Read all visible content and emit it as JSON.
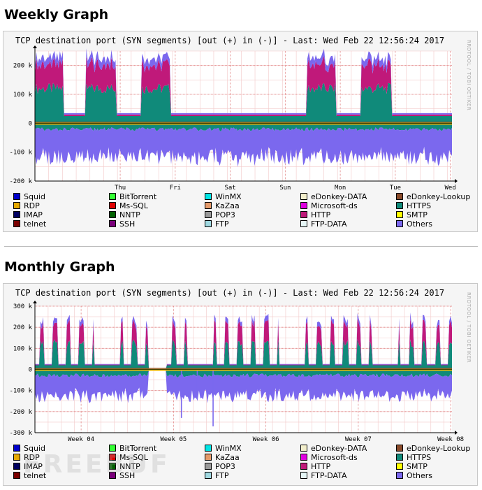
{
  "sections": [
    {
      "heading": "Weekly Graph"
    },
    {
      "heading": "Monthly Graph"
    }
  ],
  "watermark_text": "FREEBUF",
  "legend": [
    {
      "label": "Squid",
      "color": "#0000cc"
    },
    {
      "label": "BitTorrent",
      "color": "#33ff33"
    },
    {
      "label": "WinMX",
      "color": "#00e5e5"
    },
    {
      "label": "eDonkey-DATA",
      "color": "#f2eecb"
    },
    {
      "label": "eDonkey-Lookup",
      "color": "#8a4b2b"
    },
    {
      "label": "RDP",
      "color": "#e5a800"
    },
    {
      "label": "Ms-SQL",
      "color": "#e00000"
    },
    {
      "label": "KaZaa",
      "color": "#e59a6a"
    },
    {
      "label": "Microsoft-ds",
      "color": "#e000e0"
    },
    {
      "label": "HTTPS",
      "color": "#108a7a"
    },
    {
      "label": "IMAP",
      "color": "#000060"
    },
    {
      "label": "NNTP",
      "color": "#006000"
    },
    {
      "label": "POP3",
      "color": "#9a9a9a"
    },
    {
      "label": "HTTP",
      "color": "#c0197a"
    },
    {
      "label": "SMTP",
      "color": "#ffff00"
    },
    {
      "label": "telnet",
      "color": "#7a0000"
    },
    {
      "label": "SSH",
      "color": "#7a007a"
    },
    {
      "label": "FTP",
      "color": "#a0d8e0"
    },
    {
      "label": "FTP-DATA",
      "color": "#e6f7f7"
    },
    {
      "label": "Others",
      "color": "#7b68ee"
    }
  ],
  "chart_data": [
    {
      "type": "area",
      "title": "TCP destination port (SYN segments)   [out (+) in (-)] - Last: Wed Feb 22 12:56:24 2017",
      "side_label": "RRDTOOL / TOBI OETIKER",
      "ylim": [
        -200000,
        250000
      ],
      "y_ticks": [
        200000,
        100000,
        0,
        -100000,
        -200000
      ],
      "y_tick_labels": [
        "200 k",
        "100 k",
        "0",
        "-100 k",
        "-200 k"
      ],
      "x_tick_labels": [
        "Thu",
        "Fri",
        "Sat",
        "Sun",
        "Mon",
        "Tue",
        "Wed"
      ],
      "x_tick_positions_days": [
        1.55,
        2.55,
        3.55,
        4.55,
        5.55,
        6.55,
        7.55
      ],
      "x_range_days": [
        0,
        7.58
      ],
      "series": [
        {
          "name": "HTTPS (out)",
          "color": "#108a7a",
          "peak_days": [
            0.25,
            1.2,
            2.2,
            5.2,
            6.2
          ],
          "peak": 100000,
          "base": 25000
        },
        {
          "name": "HTTP (out)",
          "color": "#c0197a",
          "peak_days": [
            0.25,
            1.2,
            2.2,
            5.2,
            6.2
          ],
          "peak": 80000,
          "base": 5000
        },
        {
          "name": "Others (out)",
          "color": "#7b68ee",
          "peak_days": [
            0.25,
            1.2,
            2.2,
            5.2,
            6.2
          ],
          "peak": 20000,
          "base": 5000
        },
        {
          "name": "HTTPS (in)",
          "color": "#108a7a",
          "value": -22000
        },
        {
          "name": "Others (in)",
          "color": "#7b68ee",
          "value": -100000
        }
      ]
    },
    {
      "type": "area",
      "title": "TCP destination port (SYN segments)   [out (+) in (-)] - Last: Wed Feb 22 12:56:24 2017",
      "side_label": "RRDTOOL / TOBI OETIKER",
      "ylim": [
        -300000,
        300000
      ],
      "y_ticks": [
        300000,
        200000,
        100000,
        0,
        -100000,
        -200000,
        -300000
      ],
      "y_tick_labels": [
        "300 k",
        "200 k",
        "100 k",
        "0",
        "-100 k",
        "-200 k",
        "-300 k"
      ],
      "x_tick_labels": [
        "Week 04",
        "Week 05",
        "Week 06",
        "Week 07",
        "Week 08"
      ],
      "x_tick_positions_days": [
        3.5,
        10.5,
        17.5,
        24.5,
        31.5
      ],
      "x_range_days": [
        0,
        31.6
      ],
      "gap_days": [
        8.6,
        10.0
      ],
      "weekend_days": [
        [
          4.5,
          6.5
        ],
        [
          11.5,
          13.5
        ],
        [
          18.5,
          20.5
        ],
        [
          25.5,
          27.5
        ]
      ],
      "series": [
        {
          "name": "HTTPS (out)",
          "color": "#108a7a",
          "peak": 110000
        },
        {
          "name": "HTTP (out)",
          "color": "#c0197a",
          "peak": 90000
        },
        {
          "name": "Others (out)",
          "color": "#7b68ee",
          "peak": 20000
        },
        {
          "name": "HTTPS (in)",
          "color": "#108a7a",
          "value": -30000
        },
        {
          "name": "Others (in)",
          "color": "#7b68ee",
          "value": -100000
        }
      ],
      "spikes_in": [
        {
          "day": 11.1,
          "value": -230000
        },
        {
          "day": 12.3,
          "value": -110000
        },
        {
          "day": 13.5,
          "value": -270000
        }
      ]
    }
  ]
}
